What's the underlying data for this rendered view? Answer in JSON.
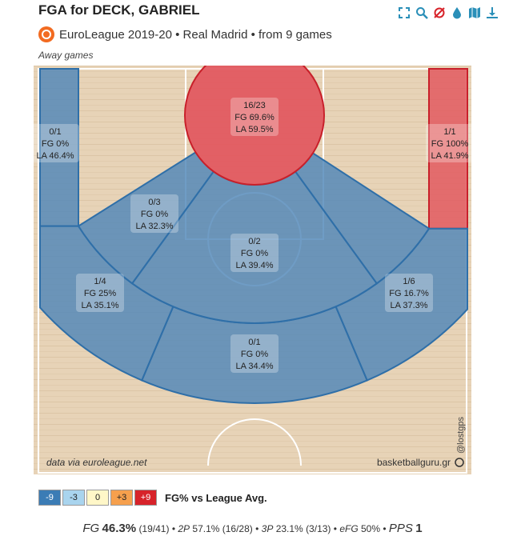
{
  "header": {
    "title": "FGA for DECK, GABRIEL",
    "subtitle": "EuroLeague 2019-20 • Real Madrid • from 9 games",
    "filter": "Away games"
  },
  "toolbar": {
    "icons": [
      "expand-icon",
      "search-icon",
      "no-filter-icon",
      "drop-icon",
      "map-icon",
      "download-icon"
    ]
  },
  "court": {
    "credit_left": "data via euroleague.net",
    "credit_right": "basketballguru.gr",
    "watermark": "@lostgps"
  },
  "chart_data": {
    "type": "heatmap",
    "title": "FGA for DECK, GABRIEL",
    "zones": [
      {
        "id": "restricted",
        "label": "16/23",
        "fg": "FG 69.6%",
        "la": "LA 59.5%",
        "made": 16,
        "att": 23,
        "fg_pct": 69.6,
        "la_pct": 59.5,
        "color": "#e2565d"
      },
      {
        "id": "corner-left",
        "label": "0/1",
        "fg": "FG 0%",
        "la": "LA 46.4%",
        "made": 0,
        "att": 1,
        "fg_pct": 0,
        "la_pct": 46.4,
        "color": "#4f86b8"
      },
      {
        "id": "corner-right",
        "label": "1/1",
        "fg": "FG 100%",
        "la": "LA 41.9%",
        "made": 1,
        "att": 1,
        "fg_pct": 100,
        "la_pct": 41.9,
        "color": "#e2565d"
      },
      {
        "id": "mid-left",
        "label": "0/3",
        "fg": "FG 0%",
        "la": "LA 32.3%",
        "made": 0,
        "att": 3,
        "fg_pct": 0,
        "la_pct": 32.3,
        "color": "#4f86b8"
      },
      {
        "id": "mid-center",
        "label": "0/2",
        "fg": "FG 0%",
        "la": "LA 39.4%",
        "made": 0,
        "att": 2,
        "fg_pct": 0,
        "la_pct": 39.4,
        "color": "#4f86b8"
      },
      {
        "id": "three-left",
        "label": "1/4",
        "fg": "FG 25%",
        "la": "LA 35.1%",
        "made": 1,
        "att": 4,
        "fg_pct": 25,
        "la_pct": 35.1,
        "color": "#4f86b8"
      },
      {
        "id": "three-center",
        "label": "0/1",
        "fg": "FG 0%",
        "la": "LA 34.4%",
        "made": 0,
        "att": 1,
        "fg_pct": 0,
        "la_pct": 34.4,
        "color": "#4f86b8"
      },
      {
        "id": "three-right",
        "label": "1/6",
        "fg": "FG 16.7%",
        "la": "LA 37.3%",
        "made": 1,
        "att": 6,
        "fg_pct": 16.7,
        "la_pct": 37.3,
        "color": "#4f86b8"
      }
    ]
  },
  "legend": {
    "items": [
      {
        "label": "-9",
        "bg": "#3b7cb5",
        "fg": "#fff"
      },
      {
        "label": "-3",
        "bg": "#a9d4ee",
        "fg": "#222"
      },
      {
        "label": "0",
        "bg": "#fff7c8",
        "fg": "#222"
      },
      {
        "label": "+3",
        "bg": "#f6a04d",
        "fg": "#222"
      },
      {
        "label": "+9",
        "bg": "#d7232a",
        "fg": "#fff"
      }
    ],
    "caption": "FG% vs League Avg."
  },
  "stats": {
    "fg_label": "FG",
    "fg_value": "46.3%",
    "fg_count": "(19/41)",
    "p2_label": "2P",
    "p2_value": "57.1% (16/28)",
    "p3_label": "3P",
    "p3_value": "23.1% (3/13)",
    "efg_label": "eFG",
    "efg_value": "50%",
    "pps_label": "PPS",
    "pps_value": "1",
    "sep": "•"
  }
}
